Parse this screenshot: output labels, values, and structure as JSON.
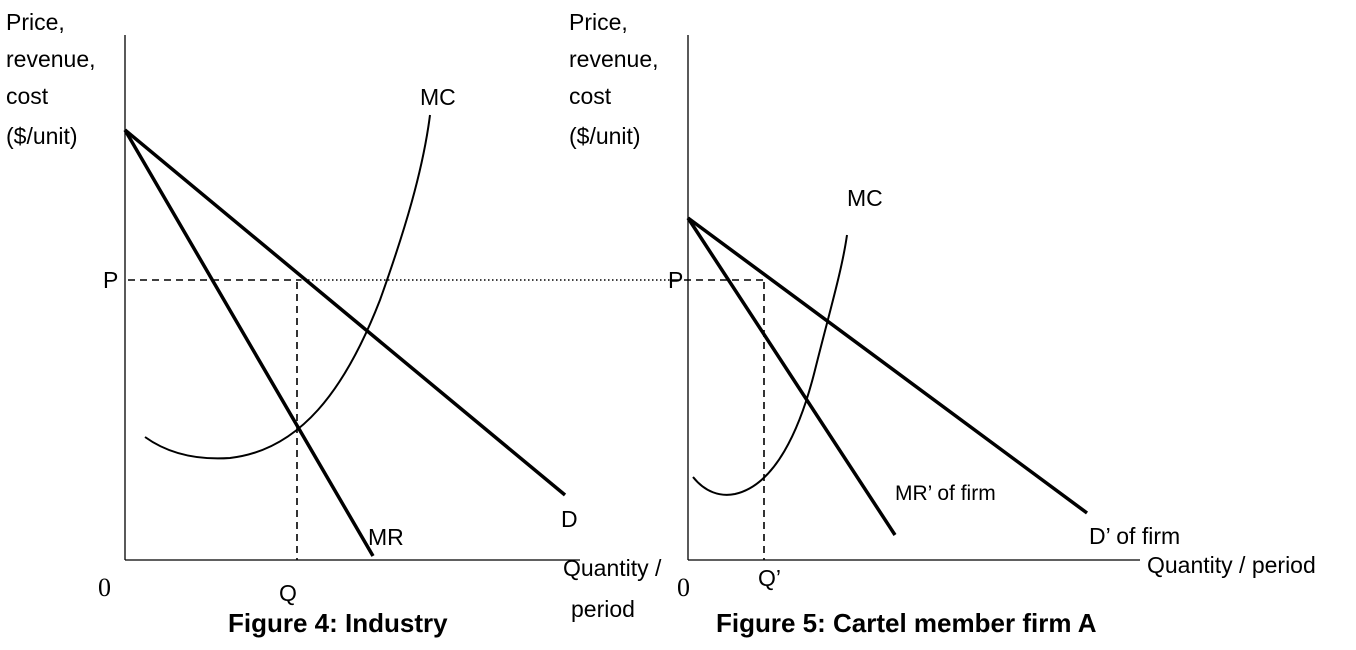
{
  "figure4": {
    "y_axis_label": [
      "Price,",
      "revenue,",
      "cost",
      "($/unit)"
    ],
    "x_axis_label": [
      "Quantity /",
      "period"
    ],
    "origin": "0",
    "mc_label": "MC",
    "mr_label": "MR",
    "d_label": "D",
    "p_label": "P",
    "q_label": "Q",
    "caption": "Figure 4: Industry"
  },
  "figure5": {
    "y_axis_label": [
      "Price,",
      "revenue,",
      "cost",
      "($/unit)"
    ],
    "x_axis_label": "Quantity / period",
    "origin": "0",
    "mc_label": "MC",
    "mr_label": "MR’ of firm",
    "d_label": "D’ of firm",
    "p_label": "P",
    "q_label": "Q’",
    "caption": "Figure 5: Cartel member firm A"
  }
}
